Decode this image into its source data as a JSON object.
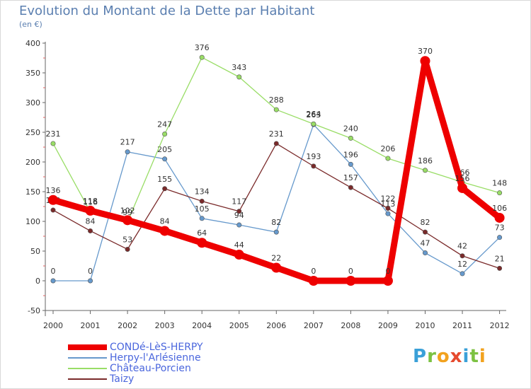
{
  "title": "Evolution du Montant de la Dette par Habitant",
  "subtitle": "(en €)",
  "logo": {
    "letters": [
      {
        "ch": "P",
        "color": "#3aa0d8"
      },
      {
        "ch": "r",
        "color": "#7cc242"
      },
      {
        "ch": "o",
        "color": "#f2a21e"
      },
      {
        "ch": "x",
        "color": "#e64a2e"
      },
      {
        "ch": "i",
        "color": "#3aa0d8"
      },
      {
        "ch": "t",
        "color": "#7cc242"
      },
      {
        "ch": "i",
        "color": "#f2a21e"
      }
    ]
  },
  "chart_data": {
    "type": "line",
    "title": "Evolution du Montant de la Dette par Habitant",
    "ylabel": "(en €)",
    "x": [
      "2000",
      "2001",
      "2002",
      "2003",
      "2004",
      "2005",
      "2006",
      "2007",
      "2008",
      "2009",
      "2010",
      "2011",
      "2012"
    ],
    "ylim": [
      -50,
      400
    ],
    "yticks": [
      -50,
      0,
      50,
      100,
      150,
      200,
      250,
      300,
      350,
      400
    ],
    "grid": false,
    "legend_position": "bottom-left",
    "series": [
      {
        "name": "CONDé-LèS-HERPY",
        "color": "#ee0000",
        "width": 9,
        "values": [
          136,
          118,
          102,
          84,
          64,
          44,
          22,
          0,
          0,
          0,
          370,
          156,
          106
        ],
        "labels": [
          "136",
          "118",
          "102",
          "84",
          "64",
          "44",
          "22",
          "0",
          "0",
          "0",
          "370",
          "156",
          "106"
        ]
      },
      {
        "name": "Herpy-l'Arlésienne",
        "color": "#6699cc",
        "width": 1.3,
        "values": [
          0,
          0,
          217,
          205,
          105,
          94,
          82,
          263,
          196,
          113,
          47,
          12,
          73
        ],
        "labels": [
          "0",
          "0",
          "217",
          "205",
          "105",
          "94",
          "82",
          "263",
          "196",
          "113",
          "47",
          "12",
          "73"
        ]
      },
      {
        "name": "Château-Porcien",
        "color": "#99dd66",
        "width": 1.3,
        "values": [
          231,
          116,
          99,
          247,
          376,
          343,
          288,
          264,
          240,
          206,
          186,
          166,
          148
        ],
        "labels": [
          "231",
          "116",
          "99",
          "247",
          "376",
          "343",
          "288",
          "264",
          "240",
          "206",
          "186",
          "166",
          "148"
        ]
      },
      {
        "name": "Taizy",
        "color": "#7a2a2a",
        "width": 1.3,
        "values": [
          119,
          84,
          53,
          155,
          134,
          117,
          231,
          193,
          157,
          122,
          82,
          42,
          21
        ],
        "labels": [
          "119",
          "84",
          "53",
          "155",
          "134",
          "117",
          "231",
          "193",
          "157",
          "122",
          "82",
          "42",
          "21"
        ]
      }
    ]
  }
}
